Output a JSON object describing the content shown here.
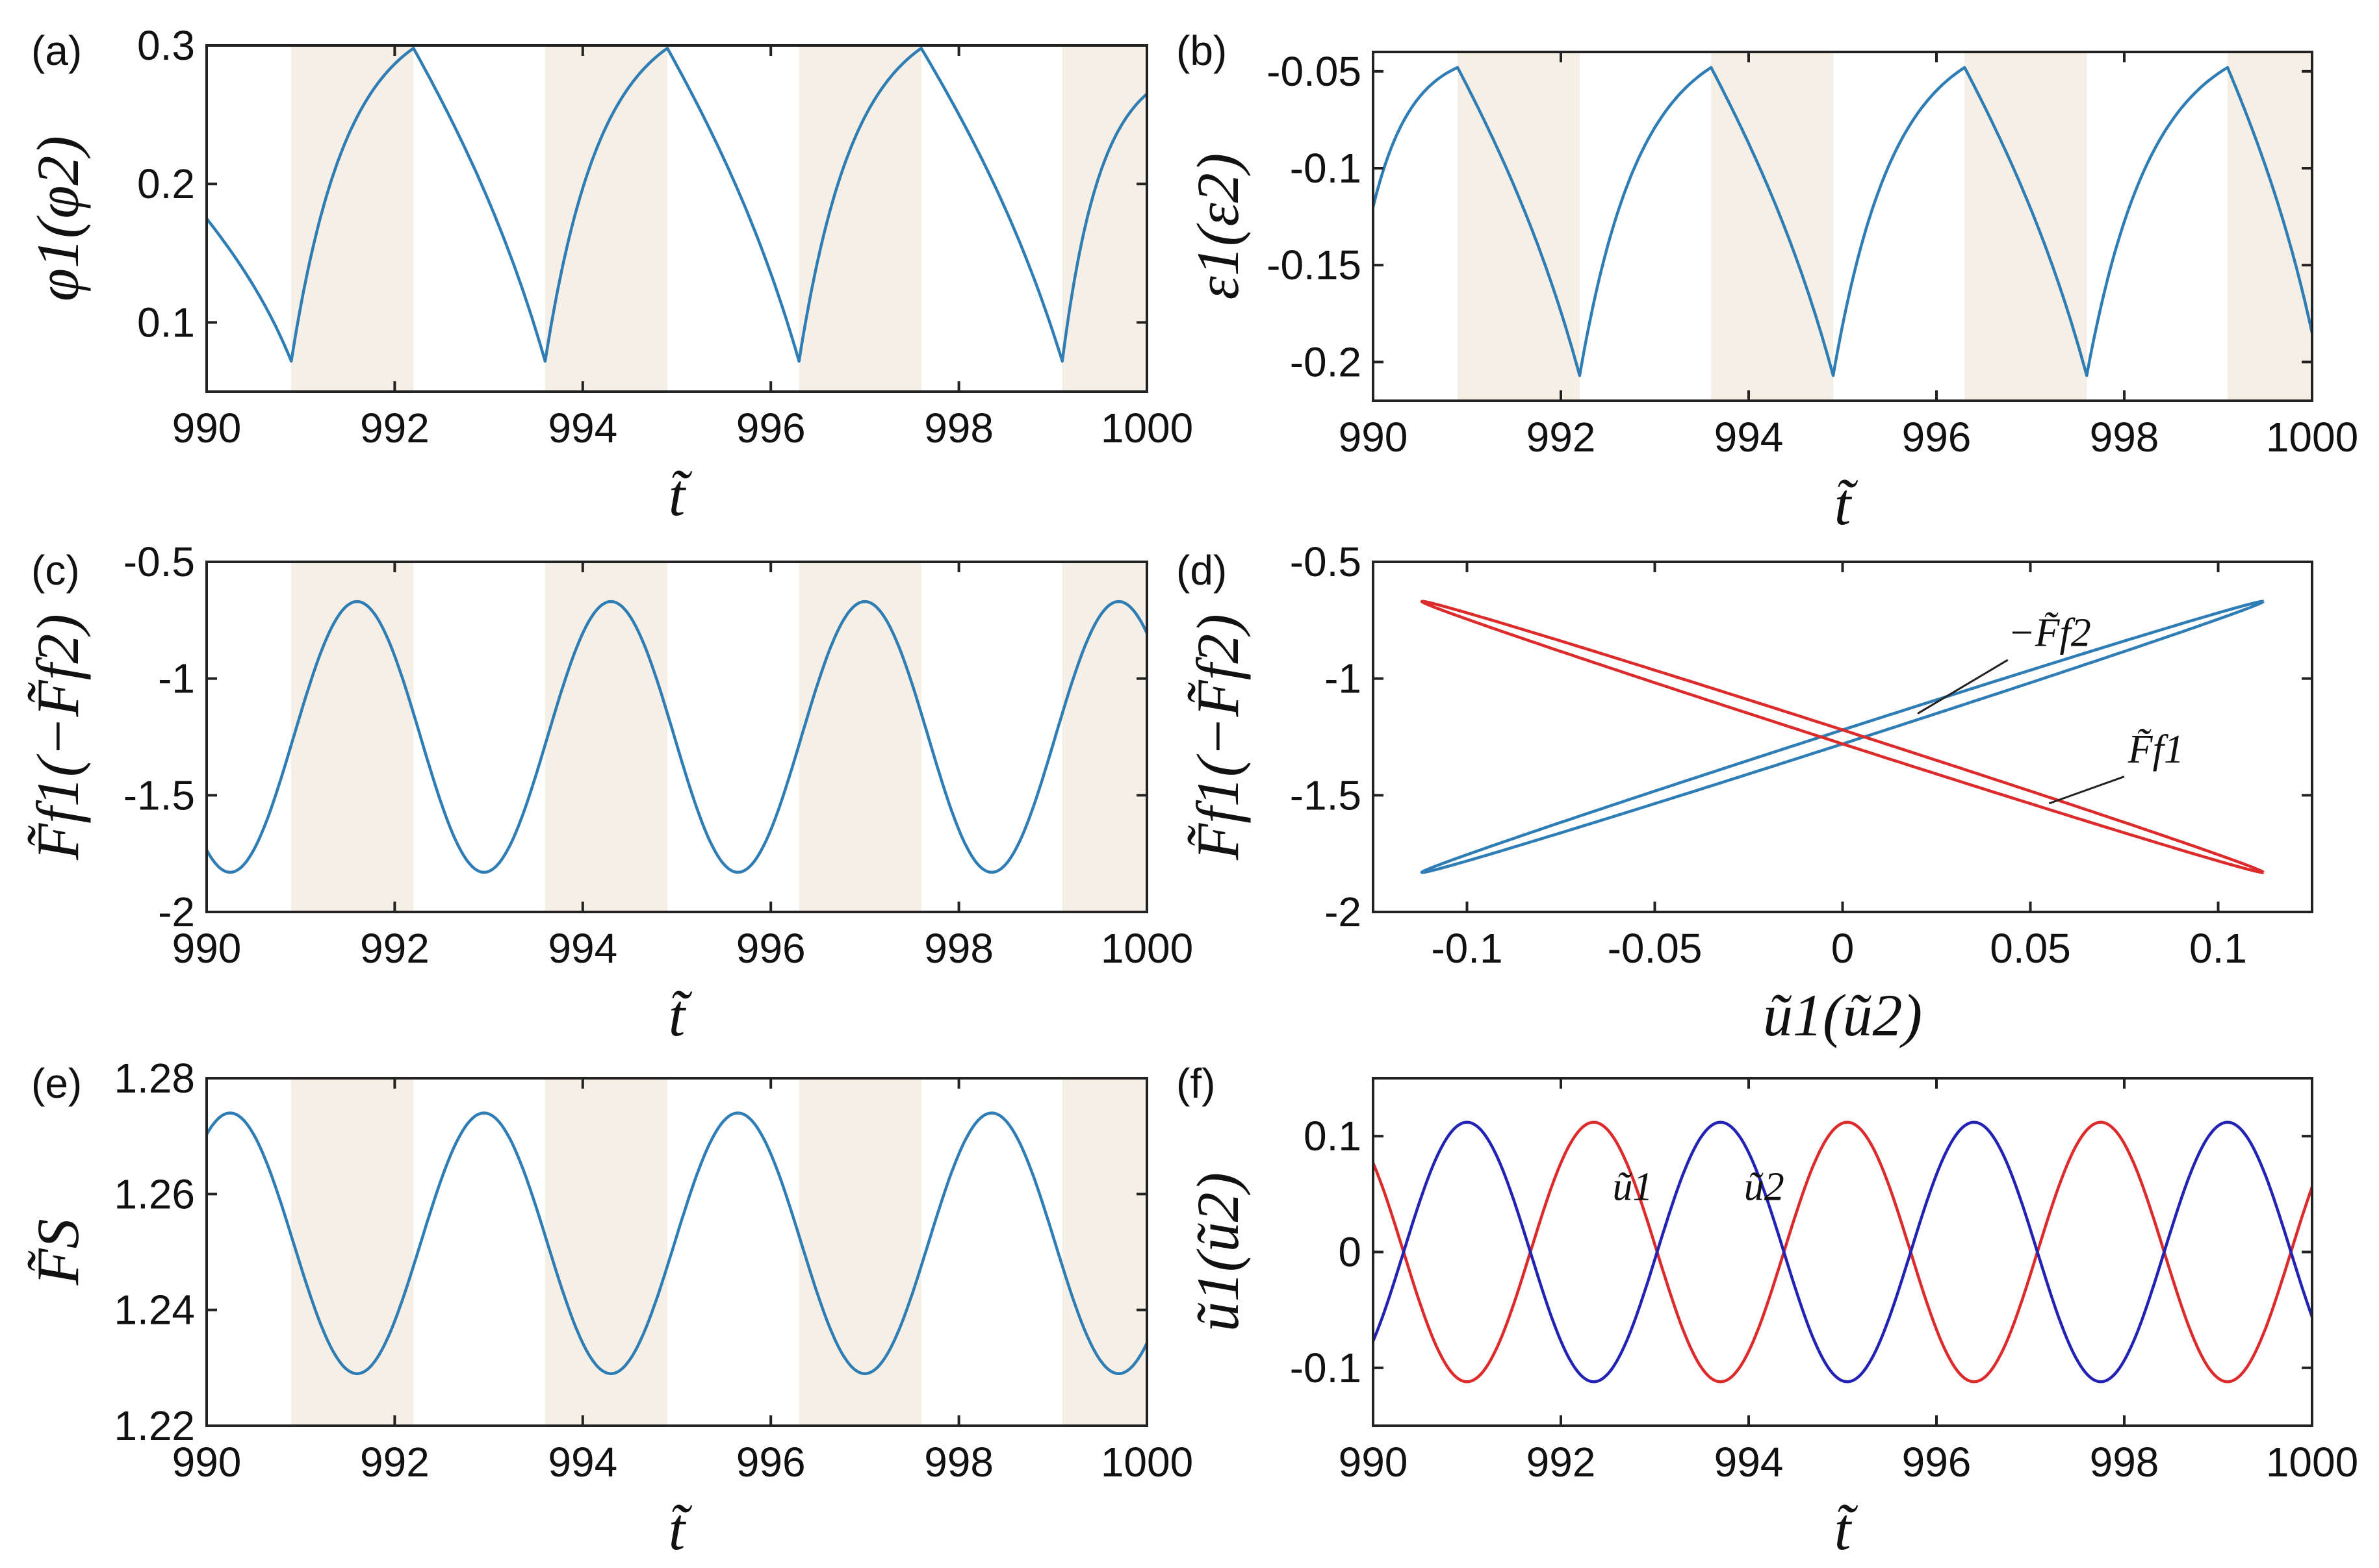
{
  "colors": {
    "shade": "#f5efe5",
    "blue_line": "#2e7db5",
    "blue_dark": "#2222b4",
    "red": "#dd2a2a"
  },
  "shade_intervals": [
    [
      990.9,
      992.2
    ],
    [
      993.6,
      994.9
    ],
    [
      996.3,
      997.6
    ],
    [
      999.1,
      1000
    ]
  ],
  "chart_data": [
    {
      "id": "a",
      "panel_label": "(a)",
      "type": "line",
      "xlim": [
        990,
        1000
      ],
      "ylim": [
        0.05,
        0.3
      ],
      "xticks": [
        990,
        992,
        994,
        996,
        998,
        1000
      ],
      "xtick_labels": [
        "990",
        "992",
        "994",
        "996",
        "998",
        "1000"
      ],
      "yticks": [
        0.1,
        0.2,
        0.3
      ],
      "ytick_labels": [
        "0.1",
        "0.2",
        "0.3"
      ],
      "xlabel": "t̃",
      "ylabel": "φ1(φ2)",
      "shaded": true,
      "series": [
        {
          "name": "φ1(φ2)",
          "color": "blue_line",
          "x": [
            990.0,
            990.9,
            992.2,
            993.6,
            994.9,
            996.3,
            997.6,
            999.1,
            1000.0
          ],
          "y": [
            0.175,
            0.072,
            0.298,
            0.072,
            0.298,
            0.072,
            0.298,
            0.072,
            0.265
          ]
        }
      ]
    },
    {
      "id": "b",
      "panel_label": "(b)",
      "type": "line",
      "xlim": [
        990,
        1000
      ],
      "ylim": [
        -0.22,
        -0.04
      ],
      "xticks": [
        990,
        992,
        994,
        996,
        998,
        1000
      ],
      "xtick_labels": [
        "990",
        "992",
        "994",
        "996",
        "998",
        "1000"
      ],
      "yticks": [
        -0.2,
        -0.15,
        -0.1,
        -0.05
      ],
      "ytick_labels": [
        "-0.2",
        "-0.15",
        "-0.1",
        "-0.05"
      ],
      "xlabel": "t̃",
      "ylabel": "ε1(ε2)",
      "shaded": true,
      "series": [
        {
          "name": "ε1(ε2)",
          "color": "blue_line",
          "x": [
            990.0,
            990.9,
            992.2,
            993.6,
            994.9,
            996.3,
            997.6,
            999.1,
            1000.0
          ],
          "y": [
            -0.12,
            -0.048,
            -0.207,
            -0.048,
            -0.207,
            -0.048,
            -0.207,
            -0.048,
            -0.185
          ]
        }
      ]
    },
    {
      "id": "c",
      "panel_label": "(c)",
      "type": "line",
      "xlim": [
        990,
        1000
      ],
      "ylim": [
        -2,
        -0.5
      ],
      "xticks": [
        990,
        992,
        994,
        996,
        998,
        1000
      ],
      "xtick_labels": [
        "990",
        "992",
        "994",
        "996",
        "998",
        "1000"
      ],
      "yticks": [
        -2,
        -1.5,
        -1,
        -0.5
      ],
      "ytick_labels": [
        "-2",
        "-1.5",
        "-1",
        "-0.5"
      ],
      "xlabel": "t̃",
      "ylabel": "F̃f1(−F̃f2)",
      "shaded": true,
      "series": [
        {
          "name": "F̃f1(−F̃f2)",
          "color": "blue_line",
          "wave": {
            "mean": -1.25,
            "amp": 0.58,
            "period": 2.7,
            "peak_at": 991.6
          }
        }
      ]
    },
    {
      "id": "d",
      "panel_label": "(d)",
      "type": "line",
      "xlim": [
        -0.125,
        0.125
      ],
      "ylim": [
        -2,
        -0.5
      ],
      "xticks": [
        -0.1,
        -0.05,
        0,
        0.05,
        0.1
      ],
      "xtick_labels": [
        "-0.1",
        "-0.05",
        "0",
        "0.05",
        "0.1"
      ],
      "yticks": [
        -2,
        -1.5,
        -1,
        -0.5
      ],
      "ytick_labels": [
        "-2",
        "-1.5",
        "-1",
        "-0.5"
      ],
      "xlabel": "ũ1(ũ2)",
      "ylabel": "F̃f1(−F̃f2)",
      "shaded": false,
      "series": [
        {
          "name": "−F̃f2",
          "color": "blue_line",
          "loop": {
            "slope": 5.18,
            "mean": -1.25,
            "width": 0.03
          }
        },
        {
          "name": "F̃f1",
          "color": "red",
          "loop": {
            "slope": -5.18,
            "mean": -1.25,
            "width": 0.03
          }
        }
      ],
      "annotations": [
        "−F̃f2",
        "F̃f1"
      ]
    },
    {
      "id": "e",
      "panel_label": "(e)",
      "type": "line",
      "xlim": [
        990,
        1000
      ],
      "ylim": [
        1.22,
        1.28
      ],
      "xticks": [
        990,
        992,
        994,
        996,
        998,
        1000
      ],
      "xtick_labels": [
        "990",
        "992",
        "994",
        "996",
        "998",
        "1000"
      ],
      "yticks": [
        1.22,
        1.24,
        1.26,
        1.28
      ],
      "ytick_labels": [
        "1.22",
        "1.24",
        "1.26",
        "1.28"
      ],
      "xlabel": "t̃",
      "ylabel": "F̃S",
      "shaded": true,
      "series": [
        {
          "name": "F̃S",
          "color": "blue_line",
          "wave": {
            "mean": 1.2515,
            "amp": 0.0225,
            "period": 2.7,
            "peak_at": 990.25
          }
        }
      ]
    },
    {
      "id": "f",
      "panel_label": "(f)",
      "type": "line",
      "xlim": [
        990,
        1000
      ],
      "ylim": [
        -0.15,
        0.15
      ],
      "xticks": [
        990,
        992,
        994,
        996,
        998,
        1000
      ],
      "xtick_labels": [
        "990",
        "992",
        "994",
        "996",
        "998",
        "1000"
      ],
      "yticks": [
        -0.1,
        0,
        0.1
      ],
      "ytick_labels": [
        "-0.1",
        "0",
        "0.1"
      ],
      "xlabel": "t̃",
      "ylabel": "ũ1(ũ2)",
      "shaded": false,
      "series": [
        {
          "name": "ũ1",
          "color": "red",
          "wave": {
            "mean": 0,
            "amp": 0.112,
            "period": 2.7,
            "peak_at": 992.35
          }
        },
        {
          "name": "ũ2",
          "color": "blue_dark",
          "wave": {
            "mean": 0,
            "amp": 0.112,
            "period": 2.7,
            "peak_at": 991.0
          }
        }
      ],
      "annotations": [
        "ũ1",
        "ũ2"
      ]
    }
  ]
}
